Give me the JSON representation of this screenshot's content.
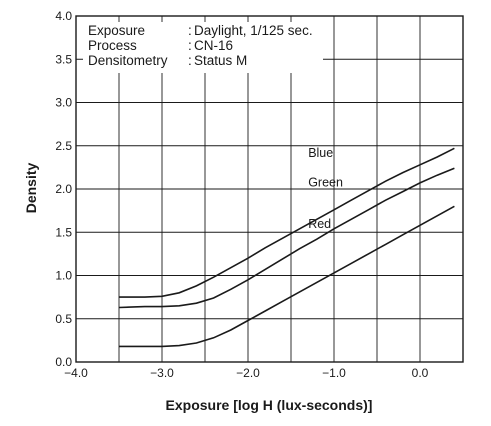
{
  "chart_data": {
    "type": "line",
    "xlabel": "Exposure [log H (lux-seconds)]",
    "ylabel": "Density",
    "xlim": [
      -4.0,
      0.5
    ],
    "ylim": [
      0.0,
      4.0
    ],
    "x_ticks": [
      -4.0,
      -3.0,
      -2.0,
      -1.0,
      0.0
    ],
    "x_tick_labels": [
      "−4.0",
      "−3.0",
      "−2.0",
      "−1.0",
      "0.0"
    ],
    "y_ticks": [
      0.0,
      0.5,
      1.0,
      1.5,
      2.0,
      2.5,
      3.0,
      3.5,
      4.0
    ],
    "y_tick_labels": [
      "0.0",
      "0.5",
      "1.0",
      "1.5",
      "2.0",
      "2.5",
      "3.0",
      "3.5",
      "4.0"
    ],
    "grid": true,
    "annotations": [
      {
        "key": "Exposure",
        "sep": ":",
        "value": "Daylight, 1/125 sec."
      },
      {
        "key": "Process",
        "sep": ":",
        "value": "CN-16"
      },
      {
        "key": "Densitometry",
        "sep": ":",
        "value": "Status M"
      }
    ],
    "series": [
      {
        "name": "Blue",
        "label_at": [
          -1.3,
          2.37
        ],
        "x": [
          -3.5,
          -3.2,
          -3.0,
          -2.8,
          -2.6,
          -2.4,
          -2.2,
          -2.0,
          -1.8,
          -1.6,
          -1.4,
          -1.2,
          -1.0,
          -0.8,
          -0.6,
          -0.4,
          -0.2,
          0.0,
          0.2,
          0.4
        ],
        "y": [
          0.75,
          0.75,
          0.76,
          0.8,
          0.88,
          0.98,
          1.09,
          1.2,
          1.32,
          1.43,
          1.54,
          1.65,
          1.76,
          1.87,
          1.98,
          2.09,
          2.19,
          2.28,
          2.37,
          2.47
        ]
      },
      {
        "name": "Green",
        "label_at": [
          -1.3,
          2.03
        ],
        "x": [
          -3.5,
          -3.2,
          -3.0,
          -2.8,
          -2.6,
          -2.4,
          -2.2,
          -2.0,
          -1.8,
          -1.6,
          -1.4,
          -1.2,
          -1.0,
          -0.8,
          -0.6,
          -0.4,
          -0.2,
          0.0,
          0.2,
          0.4
        ],
        "y": [
          0.63,
          0.64,
          0.64,
          0.65,
          0.68,
          0.74,
          0.84,
          0.95,
          1.07,
          1.19,
          1.31,
          1.42,
          1.54,
          1.65,
          1.76,
          1.87,
          1.97,
          2.07,
          2.16,
          2.24
        ]
      },
      {
        "name": "Red",
        "label_at": [
          -1.3,
          1.55
        ],
        "x": [
          -3.5,
          -3.2,
          -3.0,
          -2.8,
          -2.6,
          -2.4,
          -2.2,
          -2.0,
          -1.8,
          -1.6,
          -1.4,
          -1.2,
          -1.0,
          -0.8,
          -0.6,
          -0.4,
          -0.2,
          0.0,
          0.2,
          0.4
        ],
        "y": [
          0.18,
          0.18,
          0.18,
          0.19,
          0.22,
          0.28,
          0.37,
          0.48,
          0.59,
          0.7,
          0.81,
          0.92,
          1.03,
          1.14,
          1.25,
          1.36,
          1.47,
          1.58,
          1.69,
          1.8
        ]
      }
    ]
  }
}
